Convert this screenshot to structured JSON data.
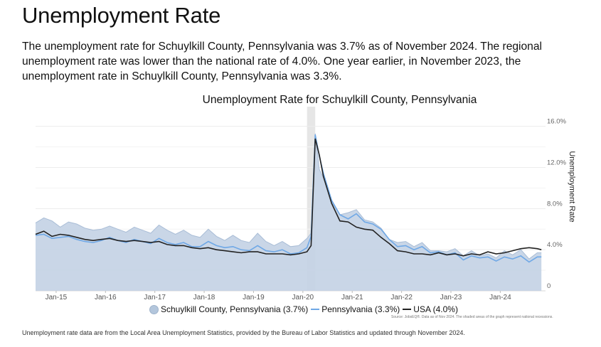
{
  "page": {
    "title": "Unemployment Rate",
    "summary": "The unemployment rate for Schuylkill County, Pennsylvania was 3.7% as of November 2024. The regional unemployment rate was lower than the national rate of 4.0%. One year earlier, in November 2023, the unemployment rate in Schuylkill County, Pennsylvania was 3.3%.",
    "footnote": "Unemployment rate data are from the Local Area Unemployment Statistics, provided by the Bureau of Labor Statistics and updated through November 2024."
  },
  "chart_data": {
    "type": "line",
    "title": "Unemployment Rate for Schuylkill County, Pennsylvania",
    "xlabel": "",
    "ylabel": "Unemployment Rate",
    "ylim": [
      0,
      17.5
    ],
    "yticks": [
      {
        "value": 0,
        "label": "0"
      },
      {
        "value": 4,
        "label": "4.0%"
      },
      {
        "value": 8,
        "label": "8.0%"
      },
      {
        "value": 12,
        "label": "12.0%"
      },
      {
        "value": 16,
        "label": "16.0%"
      }
    ],
    "xstart": "2014-08",
    "xend": "2024-12",
    "xticks": [
      {
        "date": "2015-01",
        "label": "Jan-15"
      },
      {
        "date": "2016-01",
        "label": "Jan-16"
      },
      {
        "date": "2017-01",
        "label": "Jan-17"
      },
      {
        "date": "2018-01",
        "label": "Jan-18"
      },
      {
        "date": "2019-01",
        "label": "Jan-19"
      },
      {
        "date": "2020-01",
        "label": "Jan-20"
      },
      {
        "date": "2021-01",
        "label": "Jan-21"
      },
      {
        "date": "2022-01",
        "label": "Jan-22"
      },
      {
        "date": "2023-01",
        "label": "Jan-23"
      },
      {
        "date": "2024-01",
        "label": "Jan-24"
      }
    ],
    "grid": true,
    "legend_position": "bottom",
    "recession": {
      "start": "2020-02",
      "end": "2020-04"
    },
    "note": "Source: JobsEQ®. Data as of Nov 2024. The shaded areas of the graph represent national recessions.",
    "colors": {
      "county_fill": "#c3d2e4",
      "county_stroke": "#a9bdd6",
      "state": "#6fa8e6",
      "usa": "#222222",
      "recession": "#e6e6e6"
    },
    "x": [
      "2014-08",
      "2014-10",
      "2014-12",
      "2015-02",
      "2015-04",
      "2015-06",
      "2015-08",
      "2015-10",
      "2015-12",
      "2016-02",
      "2016-04",
      "2016-06",
      "2016-08",
      "2016-10",
      "2016-12",
      "2017-02",
      "2017-04",
      "2017-06",
      "2017-08",
      "2017-10",
      "2017-12",
      "2018-02",
      "2018-04",
      "2018-06",
      "2018-08",
      "2018-10",
      "2018-12",
      "2019-02",
      "2019-04",
      "2019-06",
      "2019-08",
      "2019-10",
      "2019-12",
      "2020-02",
      "2020-03",
      "2020-04",
      "2020-05",
      "2020-06",
      "2020-08",
      "2020-10",
      "2020-12",
      "2021-02",
      "2021-04",
      "2021-06",
      "2021-08",
      "2021-10",
      "2021-12",
      "2022-02",
      "2022-04",
      "2022-06",
      "2022-08",
      "2022-10",
      "2022-12",
      "2023-02",
      "2023-04",
      "2023-06",
      "2023-08",
      "2023-10",
      "2023-12",
      "2024-02",
      "2024-04",
      "2024-06",
      "2024-08",
      "2024-10",
      "2024-11"
    ],
    "series": [
      {
        "name": "Schuylkill County, Pennsylvania (3.7%)",
        "style": "area",
        "values": [
          6.6,
          7.1,
          6.8,
          6.2,
          6.7,
          6.5,
          6.1,
          5.9,
          6.0,
          6.3,
          6.0,
          5.7,
          6.2,
          5.9,
          5.6,
          6.4,
          5.9,
          5.5,
          5.9,
          5.4,
          5.2,
          6.0,
          5.3,
          4.9,
          5.4,
          4.9,
          4.7,
          5.6,
          4.8,
          4.4,
          4.8,
          4.3,
          4.4,
          5.1,
          5.6,
          15.3,
          11.8,
          11.0,
          8.6,
          7.4,
          7.6,
          7.9,
          6.9,
          6.7,
          6.1,
          5.0,
          4.7,
          4.8,
          4.3,
          4.7,
          3.9,
          3.9,
          3.8,
          4.1,
          3.4,
          3.9,
          3.4,
          3.6,
          3.2,
          3.9,
          3.5,
          4.0,
          3.1,
          3.7,
          3.7
        ]
      },
      {
        "name": "Pennsylvania (3.3%)",
        "style": "line",
        "values": [
          5.4,
          5.5,
          5.1,
          5.2,
          5.3,
          5.0,
          4.8,
          4.7,
          4.9,
          5.2,
          4.9,
          4.7,
          5.0,
          4.8,
          4.6,
          5.1,
          4.7,
          4.5,
          4.7,
          4.3,
          4.3,
          4.8,
          4.4,
          4.2,
          4.3,
          4.0,
          3.9,
          4.4,
          3.9,
          3.8,
          4.0,
          3.6,
          3.7,
          4.2,
          5.3,
          15.2,
          13.1,
          11.4,
          8.8,
          7.4,
          7.0,
          7.5,
          6.7,
          6.5,
          6.0,
          5.0,
          4.3,
          4.4,
          4.0,
          4.3,
          3.7,
          3.8,
          3.5,
          3.7,
          3.0,
          3.4,
          3.2,
          3.3,
          2.9,
          3.3,
          3.1,
          3.4,
          2.8,
          3.3,
          3.3
        ]
      },
      {
        "name": "USA (4.0%)",
        "style": "line",
        "values": [
          5.5,
          5.8,
          5.3,
          5.5,
          5.4,
          5.2,
          5.0,
          4.9,
          5.0,
          5.1,
          4.9,
          4.8,
          4.9,
          4.8,
          4.7,
          4.8,
          4.5,
          4.4,
          4.4,
          4.2,
          4.1,
          4.2,
          4.0,
          3.9,
          3.8,
          3.7,
          3.8,
          3.8,
          3.6,
          3.6,
          3.6,
          3.5,
          3.6,
          3.8,
          4.4,
          14.8,
          13.2,
          11.1,
          8.5,
          6.8,
          6.7,
          6.2,
          6.0,
          5.9,
          5.2,
          4.6,
          3.9,
          3.8,
          3.6,
          3.6,
          3.5,
          3.7,
          3.5,
          3.6,
          3.4,
          3.6,
          3.5,
          3.8,
          3.6,
          3.7,
          3.9,
          4.1,
          4.2,
          4.1,
          4.0
        ]
      }
    ]
  }
}
